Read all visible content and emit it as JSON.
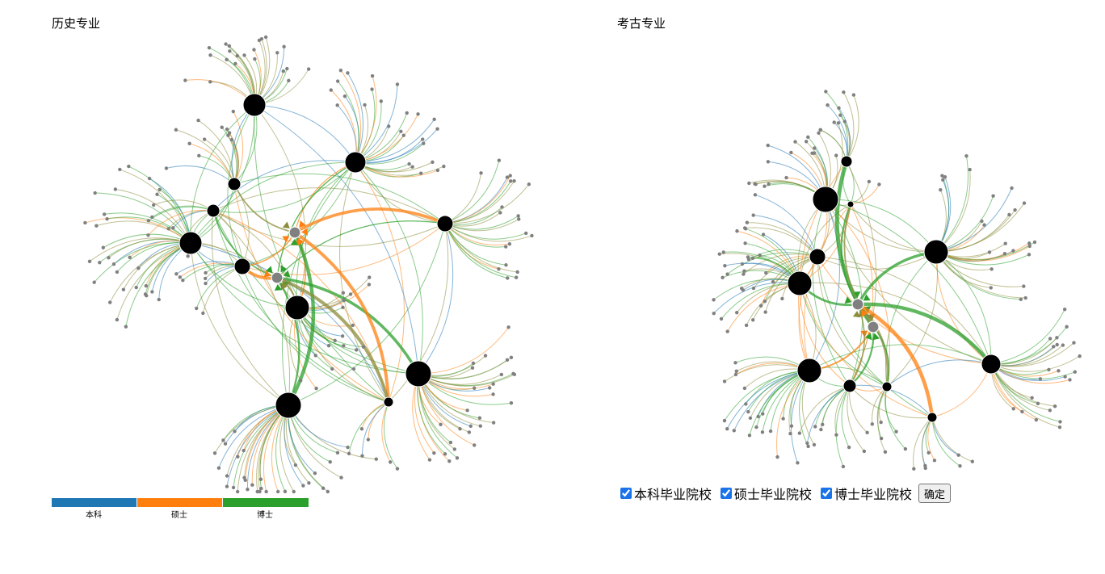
{
  "left_panel": {
    "title": "历史专业"
  },
  "right_panel": {
    "title": "考古专业"
  },
  "legend": {
    "items": [
      {
        "label": "本科",
        "color": "#1f77b4"
      },
      {
        "label": "硕士",
        "color": "#ff7f0e"
      },
      {
        "label": "博士",
        "color": "#2ca02c"
      }
    ]
  },
  "controls": {
    "checkboxes": [
      {
        "label": "本科毕业院校",
        "checked": true
      },
      {
        "label": "硕士毕业院校",
        "checked": true
      },
      {
        "label": "博士毕业院校",
        "checked": true
      }
    ],
    "confirm_label": "确定"
  },
  "colors": {
    "edge_bachelor": "#1f77b4",
    "edge_master": "#ff7f0e",
    "edge_doctor": "#2ca02c",
    "edge_mixed": "#8c8c3c",
    "hub_node": "#000000",
    "leaf_node": "#808080"
  }
}
